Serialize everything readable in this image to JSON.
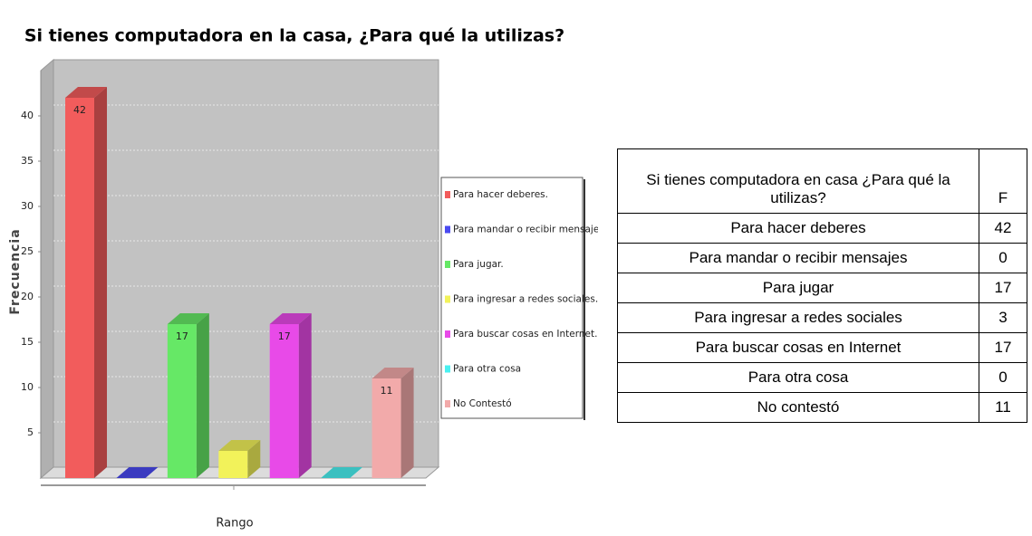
{
  "chart_data": {
    "type": "bar3d",
    "title": "Si tienes computadora en la casa, ¿Para qué la utilizas?",
    "x_label": "Rango",
    "y_label": "Frecuencia",
    "categories": [
      "Para hacer deberes.",
      "Para mandar o recibir mensajes.",
      "Para jugar.",
      "Para ingresar a redes sociales.",
      "Para buscar cosas en Internet.",
      "Para otra cosa",
      "No Contestó"
    ],
    "values": [
      42,
      0,
      17,
      3,
      17,
      0,
      11
    ],
    "value_labels": [
      "42",
      null,
      "17",
      null,
      "17",
      null,
      "11"
    ],
    "colors": [
      "#f25c5c",
      "#4a4af0",
      "#66e866",
      "#f2f25a",
      "#e84ae8",
      "#4af0f0",
      "#f2aaaa"
    ],
    "ylim": [
      0,
      45
    ],
    "yticks": [
      5,
      10,
      15,
      20,
      25,
      30,
      35,
      40
    ],
    "grid": true,
    "legend": "right"
  },
  "table": {
    "header": [
      "Si tienes computadora en casa ¿Para qué la utilizas?",
      "F"
    ],
    "rows": [
      [
        "Para hacer deberes",
        42
      ],
      [
        "Para mandar o recibir mensajes",
        0
      ],
      [
        "Para jugar",
        17
      ],
      [
        "Para ingresar a redes sociales",
        3
      ],
      [
        "Para buscar cosas en Internet",
        17
      ],
      [
        "Para otra cosa",
        0
      ],
      [
        "No contestó",
        11
      ]
    ]
  }
}
